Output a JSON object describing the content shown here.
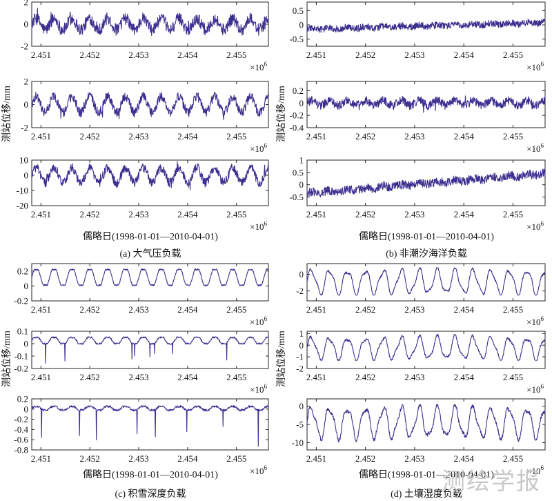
{
  "figure": {
    "ylabel": "测站位移/mm",
    "xlabel": "儒略日(1998-01-01—2010-04-01)",
    "exponent": "×10",
    "exponent_power": "6",
    "watermark": "测绘学报",
    "line_color": "#3b2f8f"
  },
  "panels": [
    {
      "caption": "(a) 大气压负载"
    },
    {
      "caption": "(b) 非潮汐海洋负载"
    },
    {
      "caption": "(c) 积雪深度负载"
    },
    {
      "caption": "(d) 土壤湿度负载"
    }
  ],
  "chart_data": [
    {
      "type": "line",
      "panel": "a",
      "row": 1,
      "xlim": [
        2450812,
        2455653
      ],
      "xticks": [
        "2.451",
        "2.452",
        "2.453",
        "2.454",
        "2.455"
      ],
      "ylim": [
        -2,
        2
      ],
      "yticks": [
        "2",
        "0",
        "-2"
      ],
      "series": [
        {
          "pattern": "annual_noise",
          "amplitude": 0.5,
          "noise": 0.55,
          "min": -1.6,
          "max": 1.7
        }
      ]
    },
    {
      "type": "line",
      "panel": "a",
      "row": 2,
      "xlim": [
        2450812,
        2455653
      ],
      "xticks": [
        "2.451",
        "2.452",
        "2.453",
        "2.454",
        "2.455"
      ],
      "ylim": [
        -2,
        2
      ],
      "yticks": [
        "2",
        "0",
        "-2"
      ],
      "series": [
        {
          "pattern": "annual_noise",
          "amplitude": 0.7,
          "noise": 0.4,
          "min": -1.6,
          "max": 1.5
        }
      ]
    },
    {
      "type": "line",
      "panel": "a",
      "row": 3,
      "xlim": [
        2450812,
        2455653
      ],
      "xticks": [
        "2.451",
        "2.452",
        "2.453",
        "2.454",
        "2.455"
      ],
      "ylim": [
        -20,
        10
      ],
      "yticks": [
        "10",
        "0",
        "-10",
        "-20"
      ],
      "series": [
        {
          "pattern": "annual_noise",
          "amplitude": 5,
          "noise": 3,
          "min": -14,
          "max": 9
        }
      ]
    },
    {
      "type": "line",
      "panel": "b",
      "row": 1,
      "xlim": [
        2450812,
        2455653
      ],
      "xticks": [
        "2.451",
        "2.452",
        "2.453",
        "2.454",
        "2.455"
      ],
      "ylim": [
        -0.75,
        0.8
      ],
      "yticks": [
        "0.5",
        "0",
        "-0.5"
      ],
      "series": [
        {
          "pattern": "trend_noise",
          "start": -0.15,
          "end": 0.08,
          "noise": 0.12,
          "min": -0.5,
          "max": 0.55
        }
      ]
    },
    {
      "type": "line",
      "panel": "b",
      "row": 2,
      "xlim": [
        2450812,
        2455653
      ],
      "xticks": [
        "2.451",
        "2.452",
        "2.453",
        "2.454",
        "2.455"
      ],
      "ylim": [
        -0.4,
        0.35
      ],
      "yticks": [
        "0.2",
        "0",
        "-0.2",
        "-0.4"
      ],
      "series": [
        {
          "pattern": "annual_noise",
          "amplitude": 0.04,
          "noise": 0.07,
          "min": -0.28,
          "max": 0.22
        }
      ]
    },
    {
      "type": "line",
      "panel": "b",
      "row": 3,
      "xlim": [
        2450812,
        2455653
      ],
      "xticks": [
        "2.451",
        "2.452",
        "2.453",
        "2.454",
        "2.455"
      ],
      "ylim": [
        -0.85,
        1.0
      ],
      "yticks": [
        "1",
        "0.5",
        "0",
        "-0.5"
      ],
      "series": [
        {
          "pattern": "trend_noise",
          "start": -0.35,
          "end": 0.45,
          "noise": 0.18,
          "min": -0.75,
          "max": 0.9
        }
      ]
    },
    {
      "type": "line",
      "panel": "c",
      "row": 1,
      "xlim": [
        2450812,
        2455653
      ],
      "xticks": [
        "2.451",
        "2.452",
        "2.453",
        "2.454",
        "2.455"
      ],
      "ylim": [
        -0.2,
        0.3
      ],
      "yticks": [
        "0.2",
        "0",
        "-0.2"
      ],
      "series": [
        {
          "pattern": "seasonal_clipped",
          "high": 0.22,
          "low": 0.01,
          "noise": 0.01,
          "min": -0.01,
          "max": 0.23
        }
      ]
    },
    {
      "type": "line",
      "panel": "c",
      "row": 2,
      "xlim": [
        2450812,
        2455653
      ],
      "xticks": [
        "2.451",
        "2.452",
        "2.453",
        "2.454",
        "2.455"
      ],
      "ylim": [
        -0.2,
        0.1
      ],
      "yticks": [
        "0.1",
        "0",
        "-0.1",
        "-0.2"
      ],
      "series": [
        {
          "pattern": "seasonal_spikes",
          "high": 0.05,
          "low": 0.0,
          "noise": 0.006,
          "min": -0.16,
          "max": 0.06
        }
      ]
    },
    {
      "type": "line",
      "panel": "c",
      "row": 3,
      "xlim": [
        2450812,
        2455653
      ],
      "xticks": [
        "2.451",
        "2.452",
        "2.453",
        "2.454",
        "2.455"
      ],
      "ylim": [
        -0.8,
        0.2
      ],
      "yticks": [
        "0.2",
        "0",
        "-0.2",
        "-0.4",
        "-0.6",
        "-0.8"
      ],
      "series": [
        {
          "pattern": "seasonal_spikes",
          "high": 0.05,
          "low": -0.02,
          "noise": 0.02,
          "min": -0.75,
          "max": 0.08
        }
      ]
    },
    {
      "type": "line",
      "panel": "d",
      "row": 1,
      "xlim": [
        2450812,
        2455653
      ],
      "xticks": [
        "2.451",
        "2.452",
        "2.453",
        "2.454",
        "2.455"
      ],
      "ylim": [
        -3.2,
        1.3
      ],
      "yticks": [
        "0",
        "-2"
      ],
      "series": [
        {
          "pattern": "seasonal_smooth",
          "amplitude": 1.4,
          "offset": -0.9,
          "noise": 0.12,
          "min": -2.5,
          "max": 0.8
        }
      ]
    },
    {
      "type": "line",
      "panel": "d",
      "row": 2,
      "xlim": [
        2450812,
        2455653
      ],
      "xticks": [
        "2.451",
        "2.452",
        "2.453",
        "2.454",
        "2.455"
      ],
      "ylim": [
        -2,
        1.2
      ],
      "yticks": [
        "1",
        "0",
        "-1",
        "-2"
      ],
      "series": [
        {
          "pattern": "seasonal_smooth",
          "amplitude": 0.9,
          "offset": -0.25,
          "noise": 0.1,
          "min": -1.3,
          "max": 1.0
        }
      ]
    },
    {
      "type": "line",
      "panel": "d",
      "row": 3,
      "xlim": [
        2450812,
        2455653
      ],
      "xticks": [
        "2.451",
        "2.452",
        "2.453",
        "2.454",
        "2.455"
      ],
      "ylim": [
        -12,
        2
      ],
      "yticks": [
        "0",
        "-5",
        "-10"
      ],
      "series": [
        {
          "pattern": "seasonal_smooth",
          "amplitude": 4,
          "offset": -4.5,
          "noise": 0.5,
          "min": -10,
          "max": 0.5
        }
      ]
    }
  ]
}
